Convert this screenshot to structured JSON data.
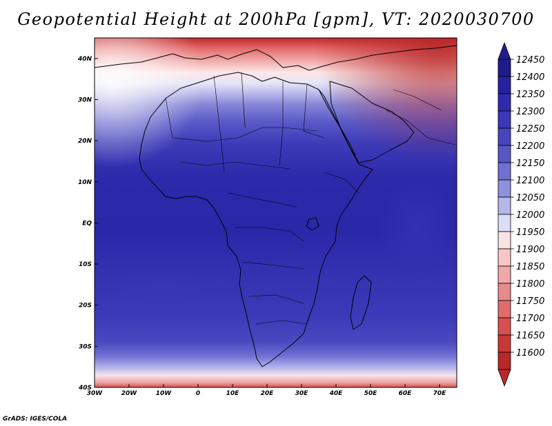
{
  "title": "Geopotential Height at 200hPa [gpm], VT: 2020030700",
  "credit": "GrADS: IGES/COLA",
  "map": {
    "lon_range": [
      -30,
      75
    ],
    "lat_range": [
      -40,
      45
    ],
    "lon_ticks": [
      {
        "value": -30,
        "label": "30W"
      },
      {
        "value": -20,
        "label": "20W"
      },
      {
        "value": -10,
        "label": "10W"
      },
      {
        "value": 0,
        "label": "0"
      },
      {
        "value": 10,
        "label": "10E"
      },
      {
        "value": 20,
        "label": "20E"
      },
      {
        "value": 30,
        "label": "30E"
      },
      {
        "value": 40,
        "label": "40E"
      },
      {
        "value": 50,
        "label": "50E"
      },
      {
        "value": 60,
        "label": "60E"
      },
      {
        "value": 70,
        "label": "70E"
      }
    ],
    "lat_ticks": [
      {
        "value": 40,
        "label": "40N"
      },
      {
        "value": 30,
        "label": "30N"
      },
      {
        "value": 20,
        "label": "20N"
      },
      {
        "value": 10,
        "label": "10N"
      },
      {
        "value": 0,
        "label": "EQ"
      },
      {
        "value": -10,
        "label": "10S"
      },
      {
        "value": -20,
        "label": "20S"
      },
      {
        "value": -30,
        "label": "30S"
      },
      {
        "value": -40,
        "label": "40S"
      }
    ]
  },
  "colorbar": {
    "levels": [
      {
        "label": "12450",
        "color": "#1f1a8f"
      },
      {
        "label": "12400",
        "color": "#2621a0"
      },
      {
        "label": "12350",
        "color": "#2f2aad"
      },
      {
        "label": "12300",
        "color": "#3a37b8"
      },
      {
        "label": "12250",
        "color": "#4746c0"
      },
      {
        "label": "12200",
        "color": "#5757c8"
      },
      {
        "label": "12150",
        "color": "#7070d2"
      },
      {
        "label": "12100",
        "color": "#9090de"
      },
      {
        "label": "12050",
        "color": "#b6b6ea"
      },
      {
        "label": "12000",
        "color": "#dcdcf6"
      },
      {
        "label": "11950",
        "color": "#fbe2e2"
      },
      {
        "label": "11900",
        "color": "#f7c7c7"
      },
      {
        "label": "11850",
        "color": "#f0a8a8"
      },
      {
        "label": "11800",
        "color": "#e98a8a"
      },
      {
        "label": "11750",
        "color": "#e26c6c"
      },
      {
        "label": "11700",
        "color": "#d84f4f"
      },
      {
        "label": "11650",
        "color": "#c93838"
      },
      {
        "label": "11600",
        "color": "#b82828"
      }
    ],
    "top_arrow_color": "#211c8e",
    "bottom_arrow_color": "#b82828"
  }
}
